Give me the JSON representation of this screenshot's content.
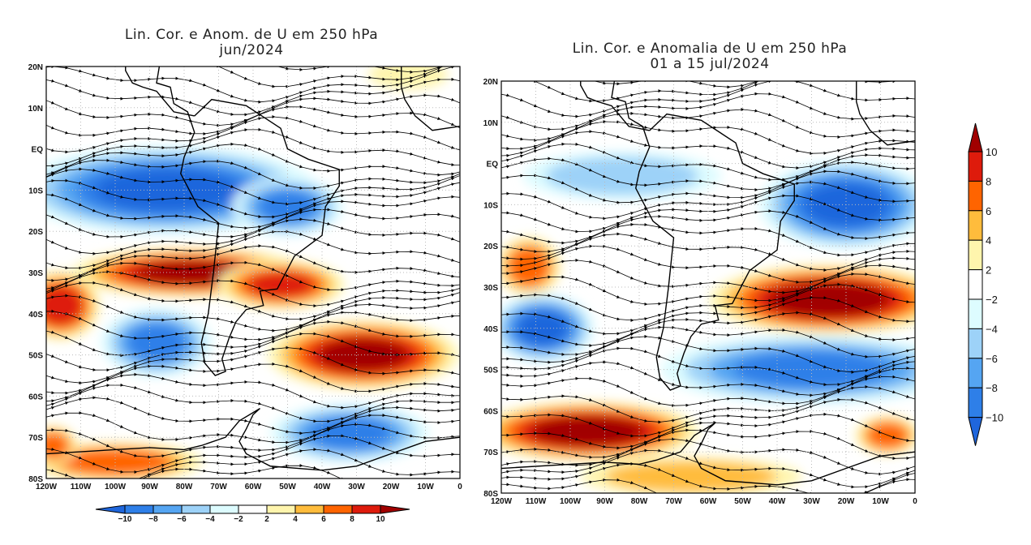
{
  "panels": [
    {
      "title_line1": "Lin. Cor. e Anom. de U em 250 hPa",
      "title_line2": "jun/2024",
      "anomalies": [
        {
          "lon": -85,
          "lat": -10,
          "rlon": 38,
          "rlat": 9,
          "value": -10
        },
        {
          "lon": -50,
          "lat": -14,
          "rlon": 14,
          "rlat": 6,
          "value": -8
        },
        {
          "lon": -78,
          "lat": -30,
          "rlon": 30,
          "rlat": 5,
          "value": 10
        },
        {
          "lon": -52,
          "lat": -33,
          "rlon": 16,
          "rlat": 5,
          "value": 8
        },
        {
          "lon": -116,
          "lat": -38,
          "rlon": 10,
          "rlat": 7,
          "value": 9
        },
        {
          "lon": -28,
          "lat": -50,
          "rlon": 24,
          "rlat": 7,
          "value": 10
        },
        {
          "lon": -88,
          "lat": -47,
          "rlon": 14,
          "rlat": 7,
          "value": -8
        },
        {
          "lon": -32,
          "lat": -69,
          "rlon": 20,
          "rlat": 6,
          "value": -8
        },
        {
          "lon": -100,
          "lat": -76,
          "rlon": 22,
          "rlat": 4,
          "value": 7
        },
        {
          "lon": -118,
          "lat": -72,
          "rlon": 6,
          "rlat": 4,
          "value": 7
        },
        {
          "lon": -15,
          "lat": 18,
          "rlon": 10,
          "rlat": 3,
          "value": 3
        }
      ]
    },
    {
      "title_line1": "Lin. Cor. e Anomalia de U em 250 hPa",
      "title_line2": "01 a 15 jul/2024",
      "anomalies": [
        {
          "lon": -20,
          "lat": -10,
          "rlon": 22,
          "rlat": 9,
          "value": -10
        },
        {
          "lon": -85,
          "lat": -3,
          "rlon": 25,
          "rlat": 5,
          "value": -5
        },
        {
          "lon": -25,
          "lat": -33,
          "rlon": 30,
          "rlat": 7,
          "value": 11
        },
        {
          "lon": -112,
          "lat": -25,
          "rlon": 8,
          "rlat": 6,
          "value": 7
        },
        {
          "lon": -108,
          "lat": -40,
          "rlon": 13,
          "rlat": 7,
          "value": -10
        },
        {
          "lon": -30,
          "lat": -50,
          "rlon": 38,
          "rlat": 7,
          "value": -8
        },
        {
          "lon": -95,
          "lat": -65,
          "rlon": 28,
          "rlat": 6,
          "value": 11
        },
        {
          "lon": -65,
          "lat": -76,
          "rlon": 28,
          "rlat": 4,
          "value": 5
        },
        {
          "lon": -8,
          "lat": -66,
          "rlon": 8,
          "rlat": 4,
          "value": 7
        }
      ]
    }
  ],
  "lat_labels": [
    "20N",
    "10N",
    "EQ",
    "10S",
    "20S",
    "30S",
    "40S",
    "50S",
    "60S",
    "70S",
    "80S"
  ],
  "lon_labels": [
    "120W",
    "110W",
    "100W",
    "90W",
    "80W",
    "70W",
    "60W",
    "50W",
    "40W",
    "30W",
    "20W",
    "10W",
    "0"
  ],
  "colorbar": {
    "labels": [
      "−10",
      "−8",
      "−6",
      "−4",
      "−2",
      "2",
      "4",
      "6",
      "8",
      "10"
    ],
    "colors": [
      "#1f66dc",
      "#2e7fe8",
      "#55a5f2",
      "#9dd2f8",
      "#ddfcff",
      "#ffffff",
      "#fff5ad",
      "#ffbc3c",
      "#ff6400",
      "#de1b0c",
      "#a10000"
    ]
  }
}
